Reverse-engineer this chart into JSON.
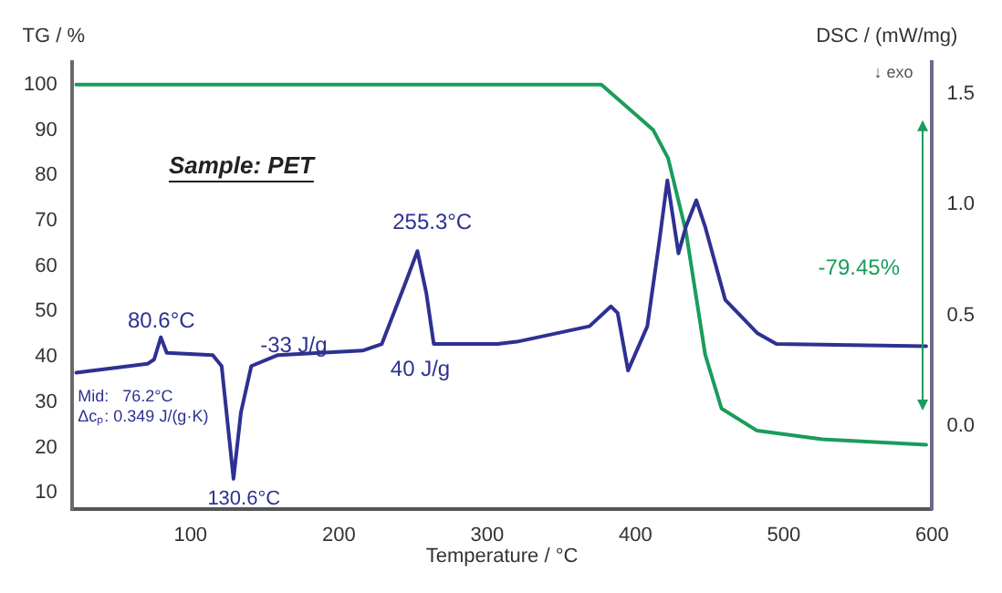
{
  "chart_data": {
    "type": "line",
    "xlabel": "Temperature / °C",
    "ylabel": "TG / %",
    "y2label": "DSC / (mW/mg)",
    "xlim": [
      20,
      600
    ],
    "xticks": [
      100,
      200,
      300,
      400,
      500,
      600
    ],
    "ylim": [
      6.5,
      105
    ],
    "yticks": [
      10,
      20,
      30,
      40,
      50,
      60,
      70,
      80,
      90,
      100
    ],
    "y2lim": [
      -0.375,
      1.645
    ],
    "y2ticks": [
      {
        "value": 0,
        "label": "0.0"
      },
      {
        "value": 0.5,
        "label": "0.5"
      },
      {
        "value": 1,
        "label": "1.0"
      },
      {
        "value": 1.5,
        "label": "1.5"
      }
    ],
    "grid": false,
    "legend": false,
    "marker": "none",
    "line_style": "solid",
    "series": [
      {
        "color": "#2e3192",
        "axis": "y2",
        "x": [
          23,
          71,
          75.5,
          80,
          84,
          115,
          121,
          129,
          134,
          141,
          159,
          216,
          229,
          244,
          253,
          259,
          264,
          307,
          320,
          369,
          383.5,
          388,
          395,
          408,
          416,
          421.5,
          429,
          434,
          441,
          447,
          460.5,
          482,
          495,
          596
        ],
        "values": [
          0.24,
          0.28,
          0.3,
          0.4,
          0.33,
          0.32,
          0.27,
          -0.24,
          0.06,
          0.27,
          0.32,
          0.34,
          0.37,
          0.63,
          0.79,
          0.6,
          0.37,
          0.37,
          0.38,
          0.45,
          0.54,
          0.51,
          0.25,
          0.45,
          0.83,
          1.11,
          0.78,
          0.9,
          1.02,
          0.9,
          0.57,
          0.42,
          0.37,
          0.36
        ]
      },
      {
        "color": "#1a9c5b",
        "axis": "y",
        "x": [
          23,
          377,
          395,
          412,
          422,
          434,
          447,
          458,
          482,
          526,
          596
        ],
        "values": [
          100,
          100,
          94.9,
          90,
          83.8,
          67.7,
          40.5,
          28.6,
          23.7,
          21.8,
          20.6
        ]
      }
    ],
    "annotations": [
      "Sample: PET",
      "80.6°C",
      "255.3°C",
      "-33 J/g",
      "40 J/g",
      "130.6°C",
      "Mid:   76.2°C",
      "Δcₚ: 0.349 J/(g·K)",
      "-79.45%",
      "↓ exo"
    ]
  }
}
